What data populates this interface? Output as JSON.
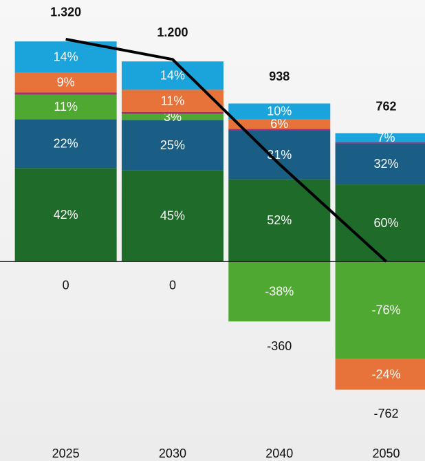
{
  "chart_data": {
    "type": "stacked_bar_line",
    "categories": [
      "2025",
      "2030",
      "2040",
      "2050"
    ],
    "ylim": [
      -900,
      1400
    ],
    "totals": {
      "values": [
        1320,
        1200,
        938,
        762
      ],
      "value_labels": [
        "1.320",
        "1.200",
        "938",
        "762"
      ]
    },
    "negative_totals": {
      "values": [
        0,
        0,
        -360,
        -762
      ],
      "value_labels": [
        "0",
        "0",
        "-360",
        "-762"
      ]
    },
    "series": [
      {
        "color": "#1e6b2a",
        "values": [
          42,
          45,
          52,
          60
        ],
        "value_labels": [
          "42%",
          "45%",
          "52%",
          "60%"
        ]
      },
      {
        "color": "#1a5e85",
        "values": [
          22,
          25,
          31,
          32
        ],
        "value_labels": [
          "22%",
          "25%",
          "31%",
          "32%"
        ]
      },
      {
        "color": "#4fa832",
        "values": [
          11,
          3,
          null,
          null
        ],
        "value_labels": [
          "11%",
          "3%",
          null,
          null
        ]
      },
      {
        "color": "#a0307a",
        "values": [
          1,
          1,
          1,
          1
        ],
        "value_labels": [
          null,
          null,
          null,
          null
        ]
      },
      {
        "color": "#e8733a",
        "values": [
          9,
          11,
          6,
          null
        ],
        "value_labels": [
          "9%",
          "11%",
          "6%",
          null
        ]
      },
      {
        "color": "#1ba3dc",
        "values": [
          14,
          14,
          10,
          7
        ],
        "value_labels": [
          "14%",
          "14%",
          "10%",
          "7%"
        ]
      }
    ],
    "negative_series": [
      {
        "color": "#4fa832",
        "values": [
          null,
          null,
          -38,
          -76
        ],
        "value_labels": [
          null,
          null,
          "-38%",
          "-76%"
        ]
      },
      {
        "color": "#e8733a",
        "values": [
          null,
          null,
          null,
          -24
        ],
        "value_labels": [
          null,
          null,
          null,
          "-24%"
        ]
      }
    ],
    "line": {
      "color": "#000000",
      "values": [
        1320,
        1200,
        578,
        0
      ]
    }
  }
}
